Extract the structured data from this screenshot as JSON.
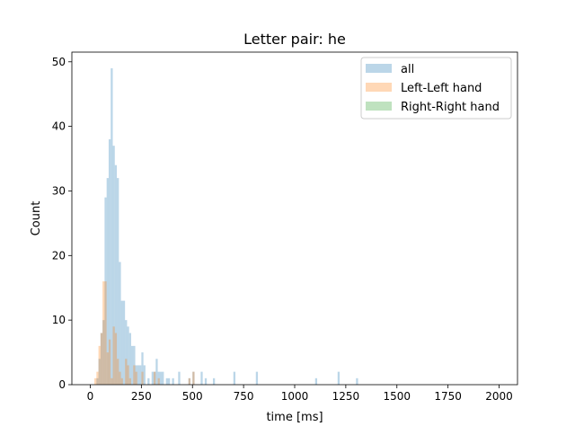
{
  "chart_data": {
    "type": "bar",
    "subtype": "overlaid-histogram",
    "title": "Letter pair: he",
    "xlabel": "time [ms]",
    "ylabel": "Count",
    "xlim": [
      -90,
      2090
    ],
    "ylim": [
      0,
      51.5
    ],
    "xticks": [
      0,
      250,
      500,
      750,
      1000,
      1250,
      1500,
      1750,
      2000
    ],
    "yticks": [
      0,
      10,
      20,
      30,
      40,
      50
    ],
    "bin_width": 10,
    "alpha": 0.3,
    "legend_position": "upper right",
    "grid": false,
    "series": [
      {
        "name": "all",
        "color": "#1f77b4",
        "bins": [
          [
            30,
            1
          ],
          [
            40,
            4
          ],
          [
            50,
            8
          ],
          [
            60,
            10
          ],
          [
            70,
            29
          ],
          [
            80,
            32
          ],
          [
            90,
            38
          ],
          [
            100,
            49
          ],
          [
            110,
            37
          ],
          [
            120,
            34
          ],
          [
            130,
            32
          ],
          [
            140,
            19
          ],
          [
            150,
            13
          ],
          [
            160,
            13
          ],
          [
            170,
            10
          ],
          [
            180,
            9
          ],
          [
            190,
            8
          ],
          [
            200,
            6
          ],
          [
            210,
            6
          ],
          [
            220,
            3
          ],
          [
            230,
            3
          ],
          [
            240,
            3
          ],
          [
            250,
            5
          ],
          [
            260,
            3
          ],
          [
            280,
            1
          ],
          [
            300,
            2
          ],
          [
            310,
            2
          ],
          [
            320,
            4
          ],
          [
            330,
            2
          ],
          [
            340,
            2
          ],
          [
            350,
            2
          ],
          [
            370,
            1
          ],
          [
            380,
            1
          ],
          [
            400,
            1
          ],
          [
            430,
            2
          ],
          [
            480,
            1
          ],
          [
            500,
            2
          ],
          [
            540,
            2
          ],
          [
            560,
            1
          ],
          [
            600,
            1
          ],
          [
            700,
            2
          ],
          [
            810,
            2
          ],
          [
            1100,
            1
          ],
          [
            1210,
            2
          ],
          [
            1300,
            1
          ]
        ]
      },
      {
        "name": "Left-Left hand",
        "color": "#ff7f0e",
        "bins": [
          [
            20,
            1
          ],
          [
            30,
            2
          ],
          [
            40,
            6
          ],
          [
            50,
            8
          ],
          [
            60,
            16
          ],
          [
            70,
            16
          ],
          [
            80,
            5
          ],
          [
            90,
            7
          ],
          [
            100,
            1
          ],
          [
            110,
            9
          ],
          [
            120,
            8
          ],
          [
            130,
            4
          ],
          [
            140,
            2
          ],
          [
            150,
            1
          ],
          [
            170,
            4
          ],
          [
            180,
            3
          ],
          [
            190,
            1
          ],
          [
            210,
            3
          ],
          [
            220,
            2
          ],
          [
            250,
            2
          ],
          [
            310,
            2
          ],
          [
            330,
            1
          ],
          [
            480,
            1
          ],
          [
            500,
            2
          ]
        ]
      },
      {
        "name": "Right-Right hand",
        "color": "#2ca02c",
        "bins": []
      }
    ]
  }
}
